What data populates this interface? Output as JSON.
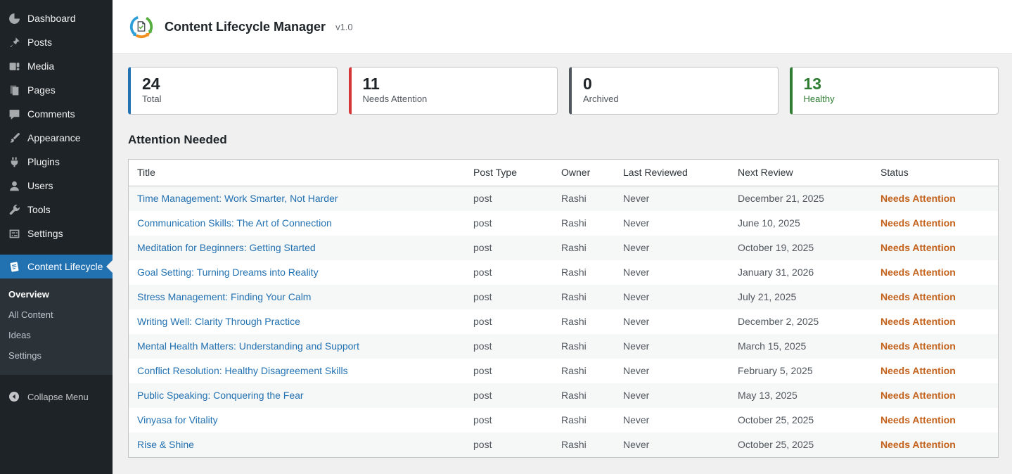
{
  "sidebar": {
    "items": [
      {
        "id": "dashboard",
        "label": "Dashboard",
        "icon": "dashboard-icon"
      },
      {
        "id": "posts",
        "label": "Posts",
        "icon": "pushpin-icon"
      },
      {
        "id": "media",
        "label": "Media",
        "icon": "media-icon"
      },
      {
        "id": "pages",
        "label": "Pages",
        "icon": "pages-icon"
      },
      {
        "id": "comments",
        "label": "Comments",
        "icon": "comment-bubble-icon"
      },
      {
        "id": "appearance",
        "label": "Appearance",
        "icon": "paintbrush-icon"
      },
      {
        "id": "plugins",
        "label": "Plugins",
        "icon": "plug-icon"
      },
      {
        "id": "users",
        "label": "Users",
        "icon": "user-icon"
      },
      {
        "id": "tools",
        "label": "Tools",
        "icon": "wrench-icon"
      },
      {
        "id": "settings",
        "label": "Settings",
        "icon": "settings-sliders-icon"
      }
    ],
    "active_item": {
      "label": "Content Lifecycle",
      "icon": "notepad-icon",
      "background": "#2271b1"
    },
    "submenu": [
      {
        "label": "Overview",
        "current": true
      },
      {
        "label": "All Content",
        "current": false
      },
      {
        "label": "Ideas",
        "current": false
      },
      {
        "label": "Settings",
        "current": false
      }
    ],
    "collapse_label": "Collapse Menu"
  },
  "header": {
    "title": "Content Lifecycle Manager",
    "version": "v1.0",
    "logo_colors": {
      "blue": "#2d9fd8",
      "green": "#56ad3f",
      "orange": "#f29021"
    }
  },
  "stats": [
    {
      "value": "24",
      "label": "Total",
      "accent": "#2271b1",
      "text_color": null
    },
    {
      "value": "11",
      "label": "Needs Attention",
      "accent": "#d63638",
      "text_color": null
    },
    {
      "value": "0",
      "label": "Archived",
      "accent": "#50575e",
      "text_color": null
    },
    {
      "value": "13",
      "label": "Healthy",
      "accent": "#2e7d32",
      "text_color": "#2e7d32"
    }
  ],
  "section": {
    "heading": "Attention Needed"
  },
  "table": {
    "columns": [
      "Title",
      "Post Type",
      "Owner",
      "Last Reviewed",
      "Next Review",
      "Status"
    ],
    "link_color": "#2271b1",
    "status_color": "#c2621c",
    "rows": [
      {
        "title": "Time Management: Work Smarter, Not Harder",
        "post_type": "post",
        "owner": "Rashi",
        "last_reviewed": "Never",
        "next_review": "December 21, 2025",
        "status": "Needs Attention"
      },
      {
        "title": "Communication Skills: The Art of Connection",
        "post_type": "post",
        "owner": "Rashi",
        "last_reviewed": "Never",
        "next_review": "June 10, 2025",
        "status": "Needs Attention"
      },
      {
        "title": "Meditation for Beginners: Getting Started",
        "post_type": "post",
        "owner": "Rashi",
        "last_reviewed": "Never",
        "next_review": "October 19, 2025",
        "status": "Needs Attention"
      },
      {
        "title": "Goal Setting: Turning Dreams into Reality",
        "post_type": "post",
        "owner": "Rashi",
        "last_reviewed": "Never",
        "next_review": "January 31, 2026",
        "status": "Needs Attention"
      },
      {
        "title": "Stress Management: Finding Your Calm",
        "post_type": "post",
        "owner": "Rashi",
        "last_reviewed": "Never",
        "next_review": "July 21, 2025",
        "status": "Needs Attention"
      },
      {
        "title": "Writing Well: Clarity Through Practice",
        "post_type": "post",
        "owner": "Rashi",
        "last_reviewed": "Never",
        "next_review": "December 2, 2025",
        "status": "Needs Attention"
      },
      {
        "title": "Mental Health Matters: Understanding and Support",
        "post_type": "post",
        "owner": "Rashi",
        "last_reviewed": "Never",
        "next_review": "March 15, 2025",
        "status": "Needs Attention"
      },
      {
        "title": "Conflict Resolution: Healthy Disagreement Skills",
        "post_type": "post",
        "owner": "Rashi",
        "last_reviewed": "Never",
        "next_review": "February 5, 2025",
        "status": "Needs Attention"
      },
      {
        "title": "Public Speaking: Conquering the Fear",
        "post_type": "post",
        "owner": "Rashi",
        "last_reviewed": "Never",
        "next_review": "May 13, 2025",
        "status": "Needs Attention"
      },
      {
        "title": "Vinyasa for Vitality",
        "post_type": "post",
        "owner": "Rashi",
        "last_reviewed": "Never",
        "next_review": "October 25, 2025",
        "status": "Needs Attention"
      },
      {
        "title": "Rise & Shine",
        "post_type": "post",
        "owner": "Rashi",
        "last_reviewed": "Never",
        "next_review": "October 25, 2025",
        "status": "Needs Attention"
      }
    ]
  }
}
